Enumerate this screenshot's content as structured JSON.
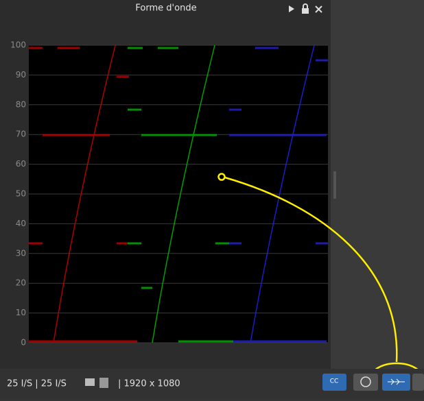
{
  "panel": {
    "title": "Forme d'onde"
  },
  "scope": {
    "scale": [
      0,
      10,
      20,
      30,
      40,
      50,
      60,
      70,
      80,
      90,
      100
    ]
  },
  "status_bar": {
    "frame_rate": "25 I/S | 25 I/S",
    "resolution": "| 1920 x 1080",
    "cc_button": "CC"
  }
}
